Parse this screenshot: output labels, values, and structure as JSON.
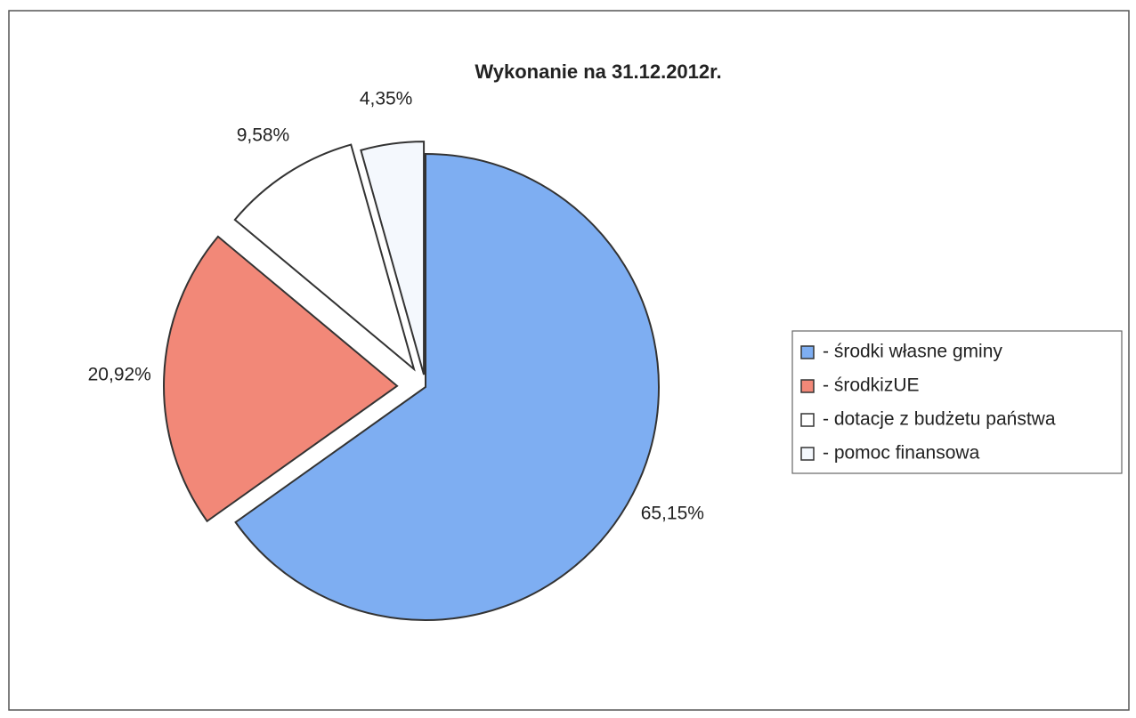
{
  "chart_data": {
    "type": "pie",
    "title": "Wykonanie na 31.12.2012r.",
    "categories": [
      "- środki własne gminy",
      "- środkizUE",
      "- dotacje z budżetu państwa",
      "- pomoc finansowa"
    ],
    "values": [
      65.15,
      20.92,
      9.58,
      4.35
    ],
    "value_labels": [
      "65,15%",
      "20,92%",
      "9,58%",
      "4,35%"
    ],
    "colors": [
      "#7eaef2",
      "#f28878",
      "#ffffff",
      "#f4f8fd"
    ],
    "legend": "right"
  }
}
